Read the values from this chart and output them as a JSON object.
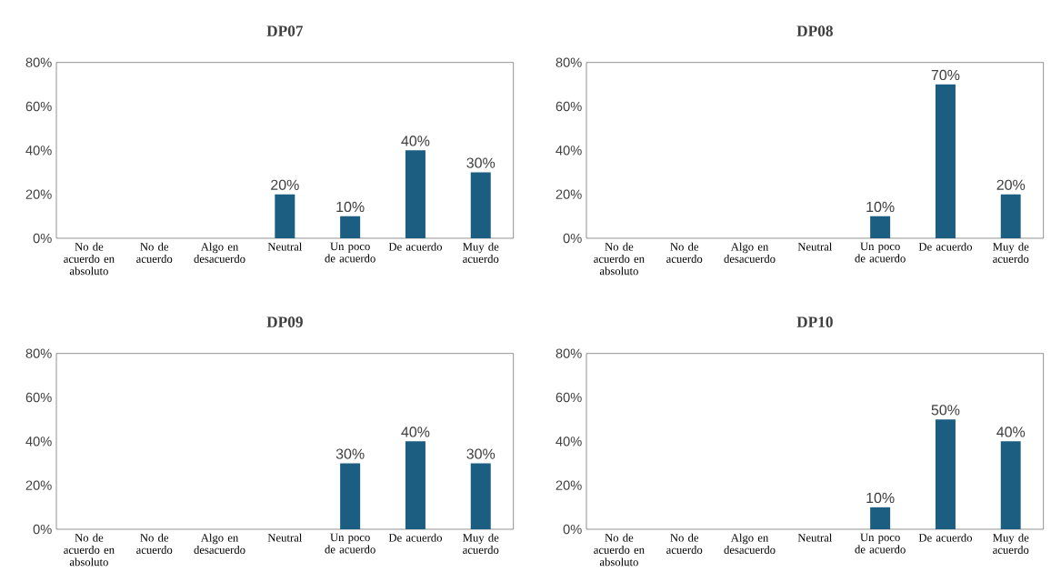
{
  "chart_data": [
    {
      "type": "bar",
      "title": "DP07",
      "categories": [
        "No de acuerdo en absoluto",
        "No de acuerdo",
        "Algo en desacuerdo",
        "Neutral",
        "Un poco de acuerdo",
        "De acuerdo",
        "Muy de acuerdo"
      ],
      "values": [
        0,
        0,
        0,
        20,
        10,
        40,
        30
      ],
      "value_labels": [
        null,
        null,
        null,
        "20%",
        "10%",
        "40%",
        "30%"
      ],
      "color": "#1b5e82",
      "ylim": [
        0,
        80
      ],
      "yticks": [
        {
          "value": 0,
          "label": "0%"
        },
        {
          "value": 20,
          "label": "20%"
        },
        {
          "value": 40,
          "label": "40%"
        },
        {
          "value": 60,
          "label": "60%"
        },
        {
          "value": 80,
          "label": "80%"
        }
      ]
    },
    {
      "type": "bar",
      "title": "DP08",
      "categories": [
        "No de acuerdo en absoluto",
        "No de acuerdo",
        "Algo en desacuerdo",
        "Neutral",
        "Un poco de acuerdo",
        "De acuerdo",
        "Muy de acuerdo"
      ],
      "values": [
        0,
        0,
        0,
        0,
        10,
        70,
        20
      ],
      "value_labels": [
        null,
        null,
        null,
        null,
        "10%",
        "70%",
        "20%"
      ],
      "color": "#1b5e82",
      "ylim": [
        0,
        80
      ],
      "yticks": [
        {
          "value": 0,
          "label": "0%"
        },
        {
          "value": 20,
          "label": "20%"
        },
        {
          "value": 40,
          "label": "40%"
        },
        {
          "value": 60,
          "label": "60%"
        },
        {
          "value": 80,
          "label": "80%"
        }
      ]
    },
    {
      "type": "bar",
      "title": "DP09",
      "categories": [
        "No de acuerdo en absoluto",
        "No de acuerdo",
        "Algo en desacuerdo",
        "Neutral",
        "Un poco de acuerdo",
        "De acuerdo",
        "Muy de acuerdo"
      ],
      "values": [
        0,
        0,
        0,
        0,
        30,
        40,
        30
      ],
      "value_labels": [
        null,
        null,
        null,
        null,
        "30%",
        "40%",
        "30%"
      ],
      "color": "#1b5e82",
      "ylim": [
        0,
        80
      ],
      "yticks": [
        {
          "value": 0,
          "label": "0%"
        },
        {
          "value": 20,
          "label": "20%"
        },
        {
          "value": 40,
          "label": "40%"
        },
        {
          "value": 60,
          "label": "60%"
        },
        {
          "value": 80,
          "label": "80%"
        }
      ]
    },
    {
      "type": "bar",
      "title": "DP10",
      "categories": [
        "No de acuerdo en absoluto",
        "No de acuerdo",
        "Algo en desacuerdo",
        "Neutral",
        "Un poco de acuerdo",
        "De acuerdo",
        "Muy de acuerdo"
      ],
      "values": [
        0,
        0,
        0,
        0,
        10,
        50,
        40
      ],
      "value_labels": [
        null,
        null,
        null,
        null,
        "10%",
        "50%",
        "40%"
      ],
      "color": "#1b5e82",
      "ylim": [
        0,
        80
      ],
      "yticks": [
        {
          "value": 0,
          "label": "0%"
        },
        {
          "value": 20,
          "label": "20%"
        },
        {
          "value": 40,
          "label": "40%"
        },
        {
          "value": 60,
          "label": "60%"
        },
        {
          "value": 80,
          "label": "80%"
        }
      ]
    }
  ]
}
